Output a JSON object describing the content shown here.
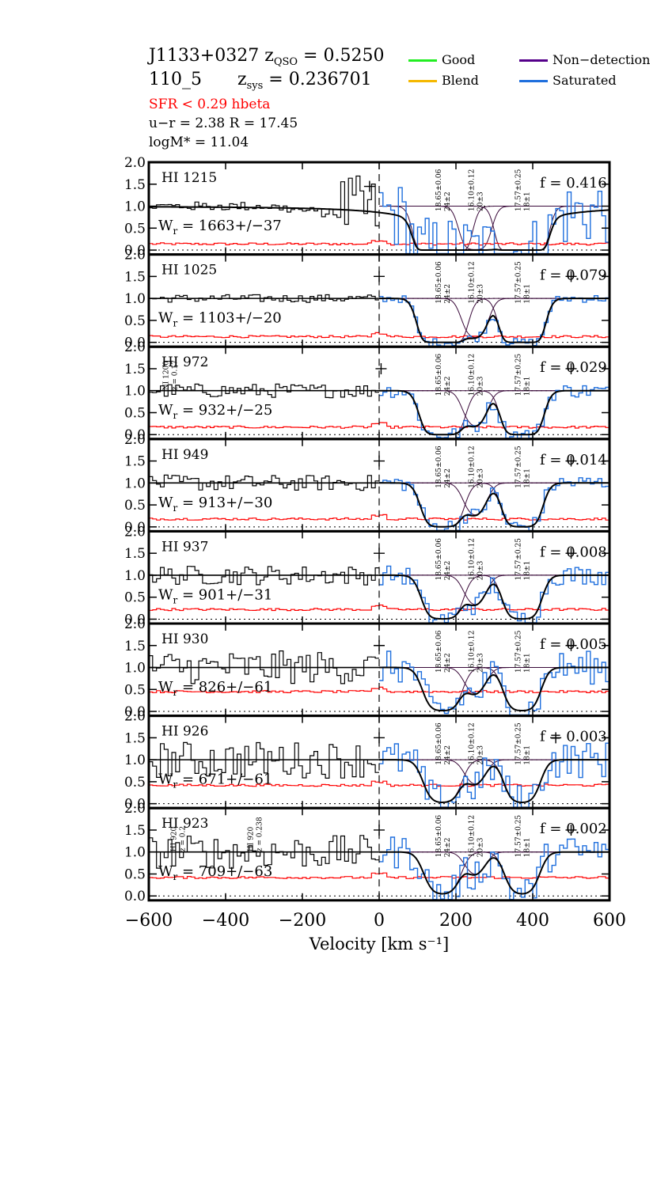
{
  "header": {
    "line1_name": "J1133+0327",
    "line1_zlabel": "z",
    "line1_zsub": "QSO",
    "line1_zval": " = 0.5250",
    "line2_id": "110_5",
    "line2_zlabel": "z",
    "line2_zsub": "sys",
    "line2_zval": " = 0.236701",
    "sfr": "SFR <  0.29  hbeta",
    "color_r": "u−r = 2.38   R =  17.45",
    "logm": "logM* =  11.04"
  },
  "legend": [
    {
      "label": "Good",
      "color": "#22ee22"
    },
    {
      "label": "Non−detection",
      "color": "#55008a"
    },
    {
      "label": "Blend",
      "color": "#f5b800"
    },
    {
      "label": "Saturated",
      "color": "#1f6fdd"
    }
  ],
  "chart_data": {
    "type": "line",
    "xlabel": "Velocity [km s⁻¹]",
    "xlim": [
      -600,
      600
    ],
    "ylim": [
      -0.1,
      2.0
    ],
    "xticks": [
      "−600",
      "−400",
      "−200",
      "0",
      "200",
      "400",
      "600"
    ],
    "xtick_values": [
      -600,
      -400,
      -200,
      0,
      200,
      400,
      600
    ],
    "yticks": [
      "0.0",
      "0.5",
      "1.0",
      "1.5",
      "2.0"
    ],
    "ytick_values": [
      0.0,
      0.5,
      1.0,
      1.5,
      2.0
    ],
    "components": [
      {
        "v": 165,
        "label1": "18.65±0.06",
        "label2": "24±2"
      },
      {
        "v": 250,
        "label1": "16.10±0.12",
        "label2": "20±3"
      },
      {
        "v": 372,
        "label1": "17.57±0.25",
        "label2": "18±1"
      }
    ],
    "colors": {
      "data": "#000000",
      "saturated": "#1f6fdd",
      "error": "#ff0000",
      "model": "#000000",
      "components": "#3a0a3a"
    },
    "panels": [
      {
        "ion": "HI 1215",
        "f": "f = 0.416",
        "wr": "W",
        "wr_sub": "r",
        "wr_val": "= 1663+/−37",
        "noise": 0.8,
        "err": 0.14,
        "plus": [
          [
            -25,
            1.45
          ]
        ],
        "annotations": []
      },
      {
        "ion": "HI 1025",
        "f": "f = 0.079",
        "wr": "W",
        "wr_sub": "r",
        "wr_val": "= 1103+/−20",
        "noise": 0.09,
        "err": 0.13,
        "plus": [
          [
            0,
            1.5
          ],
          [
            500,
            1.5
          ]
        ],
        "annotations": []
      },
      {
        "ion": "HI 972",
        "f": "f = 0.029",
        "wr": "W",
        "wr_sub": "r",
        "wr_val": "= 932+/−25",
        "noise": 0.16,
        "err": 0.17,
        "plus": [
          [
            5,
            1.5
          ],
          [
            500,
            1.5
          ]
        ],
        "annotations": [
          {
            "v": -545,
            "l1": "NI 1200",
            "l2": "z = 0.17"
          }
        ]
      },
      {
        "ion": "HI 949",
        "f": "f = 0.014",
        "wr": "W",
        "wr_sub": "r",
        "wr_val": "= 913+/−30",
        "noise": 0.18,
        "err": 0.18,
        "plus": [
          [
            0,
            1.5
          ],
          [
            500,
            1.5
          ]
        ],
        "annotations": []
      },
      {
        "ion": "HI 937",
        "f": "f = 0.008",
        "wr": "W",
        "wr_sub": "r",
        "wr_val": "= 901+/−31",
        "noise": 0.22,
        "err": 0.22,
        "plus": [
          [
            0,
            1.5
          ],
          [
            500,
            1.5
          ]
        ],
        "annotations": []
      },
      {
        "ion": "HI 930",
        "f": "f = 0.005",
        "wr": "W",
        "wr_sub": "r",
        "wr_val": "= 826+/−61",
        "noise": 0.38,
        "err": 0.45,
        "plus": [
          [
            0,
            1.5
          ],
          [
            500,
            1.5
          ]
        ],
        "annotations": []
      },
      {
        "ion": "HI 926",
        "f": "f = 0.003",
        "wr": "W",
        "wr_sub": "r",
        "wr_val": "= 671+/−61",
        "noise": 0.42,
        "err": 0.42,
        "plus": [
          [
            0,
            1.5
          ],
          [
            460,
            1.5
          ]
        ],
        "annotations": []
      },
      {
        "ion": "HI 923",
        "f": "f = 0.002",
        "wr": "W",
        "wr_sub": "r",
        "wr_val": "= 709+/−63",
        "noise": 0.38,
        "err": 0.42,
        "plus": [
          [
            0,
            1.5
          ],
          [
            500,
            1.5
          ]
        ],
        "annotations": [
          {
            "v": -525,
            "l1": "HI 920",
            "l2": "z = 0.2"
          },
          {
            "v": -325,
            "l1": "HI 920",
            "l2": "z = 0.238"
          }
        ]
      }
    ]
  }
}
